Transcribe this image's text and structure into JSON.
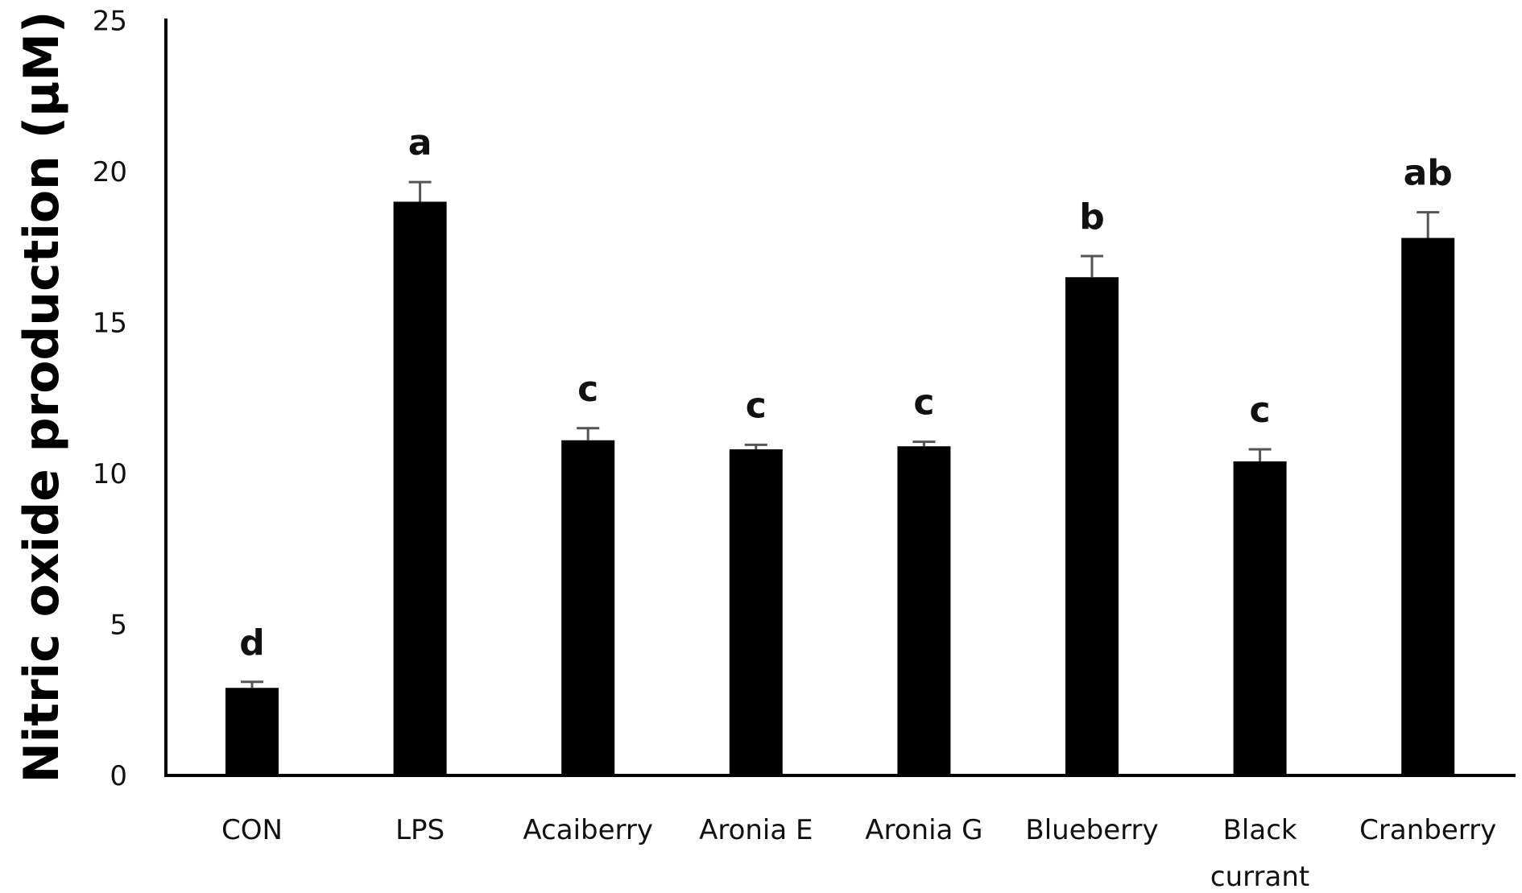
{
  "chart_data": {
    "type": "bar",
    "title": "",
    "xlabel": "",
    "ylabel": "Nitric oxide production (μM)",
    "ylim": [
      0,
      25
    ],
    "yticks": [
      0,
      5,
      10,
      15,
      20,
      25
    ],
    "grid": false,
    "legend": null,
    "categories": [
      "CON",
      "LPS",
      "Acaiberry",
      "Aronia E",
      "Aronia G",
      "Blueberry",
      "Black currant",
      "Cranberry"
    ],
    "category_lines": [
      [
        "CON"
      ],
      [
        "LPS"
      ],
      [
        "Acaiberry"
      ],
      [
        "Aronia E"
      ],
      [
        "Aronia G"
      ],
      [
        "Blueberry"
      ],
      [
        "Black",
        "currant"
      ],
      [
        "Cranberry"
      ]
    ],
    "values": [
      2.9,
      19.0,
      11.1,
      10.8,
      10.9,
      16.5,
      10.4,
      17.8
    ],
    "errors": [
      0.2,
      0.65,
      0.4,
      0.15,
      0.15,
      0.7,
      0.4,
      0.85
    ],
    "significance_letters": [
      "d",
      "a",
      "c",
      "c",
      "c",
      "b",
      "c",
      "ab"
    ],
    "bar_color": "#000000",
    "error_bar_color": "#555555"
  }
}
